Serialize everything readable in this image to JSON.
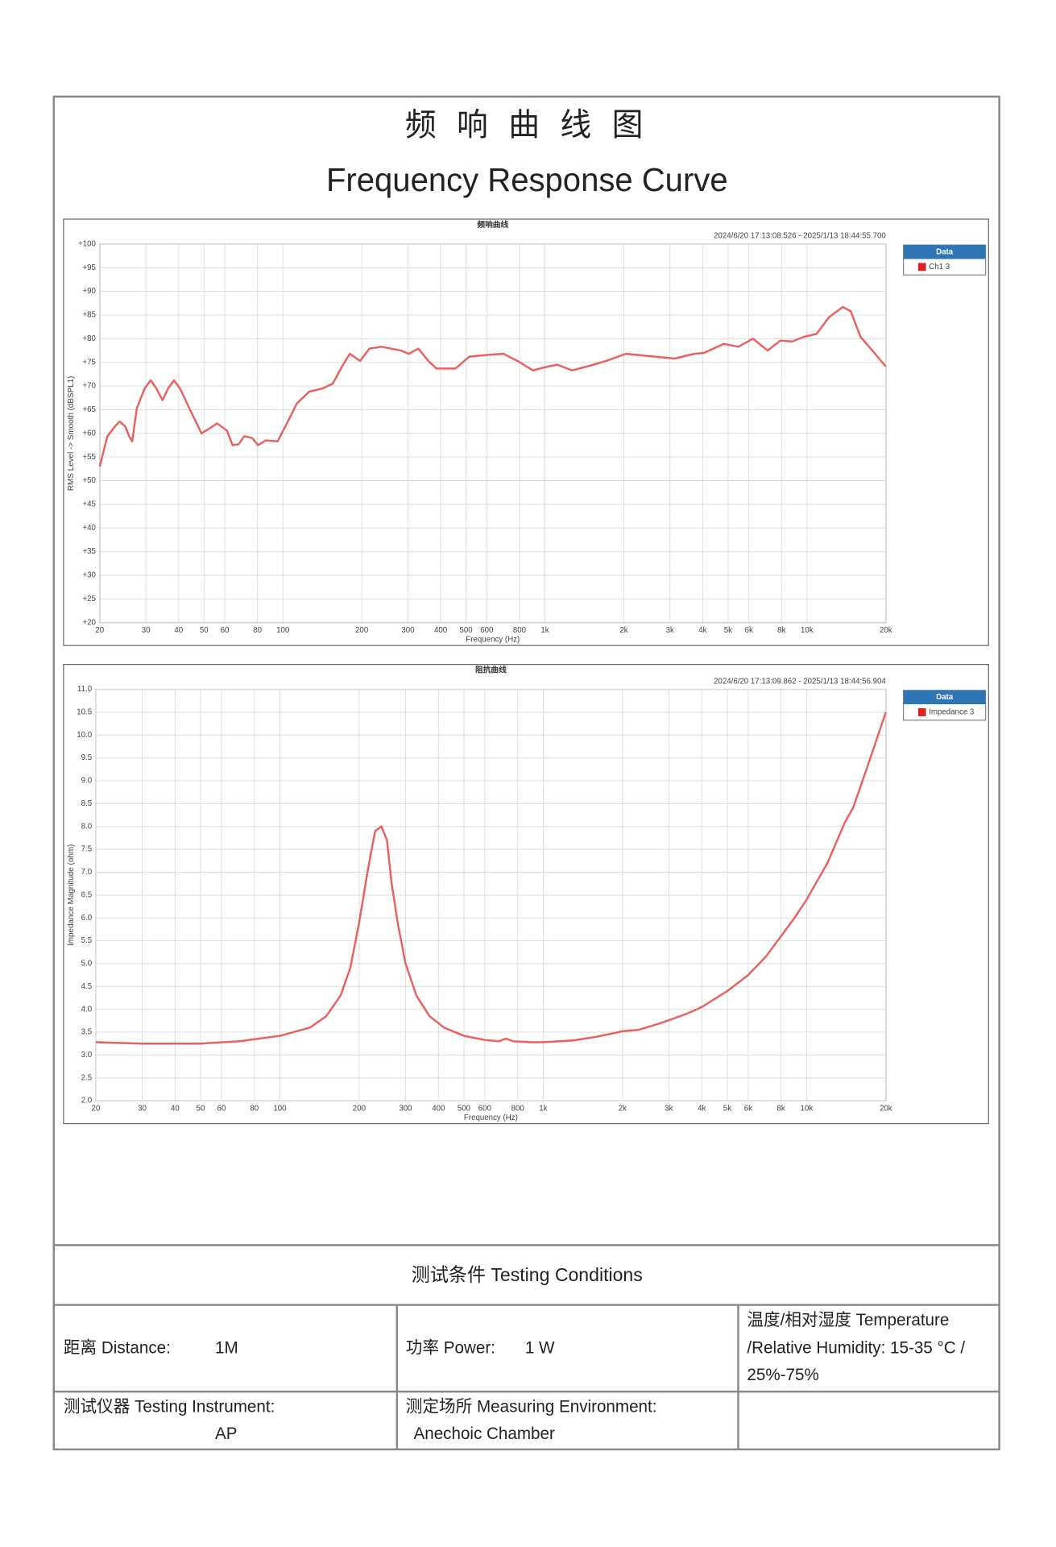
{
  "header": {
    "title_cn": "频 响 曲 线 图",
    "title_en": "Frequency Response Curve"
  },
  "chart_data": [
    {
      "type": "line",
      "title": "频响曲线",
      "subtitle": "2024/6/20 17:13:08.526 - 2025/1/13 18:44:55.700",
      "x_label": "Frequency (Hz)",
      "y_label": "RMS Level -> Smooth (dBSPL1)",
      "log_x": true,
      "grid": true,
      "legend": "outside-right",
      "legend_title": "Data",
      "xlim": [
        20,
        20000
      ],
      "xticks": [
        20,
        30,
        40,
        50,
        60,
        80,
        100,
        200,
        300,
        400,
        500,
        600,
        800,
        {
          "value": 1000,
          "label": "1k"
        },
        {
          "value": 2000,
          "label": "2k"
        },
        {
          "value": 3000,
          "label": "3k"
        },
        {
          "value": 4000,
          "label": "4k"
        },
        {
          "value": 5000,
          "label": "5k"
        },
        {
          "value": 6000,
          "label": "6k"
        },
        {
          "value": 8000,
          "label": "8k"
        },
        {
          "value": 10000,
          "label": "10k"
        },
        {
          "value": 20000,
          "label": "20k"
        }
      ],
      "ylim": [
        20,
        100
      ],
      "yticks": [
        {
          "value": 100,
          "label": "+100"
        },
        {
          "value": 95,
          "label": "+95"
        },
        {
          "value": 90,
          "label": "+90"
        },
        {
          "value": 85,
          "label": "+85"
        },
        {
          "value": 80,
          "label": "+80"
        },
        {
          "value": 75,
          "label": "+75"
        },
        {
          "value": 70,
          "label": "+70"
        },
        {
          "value": 65,
          "label": "+65"
        },
        {
          "value": 60,
          "label": "+60"
        },
        {
          "value": 55,
          "label": "+55"
        },
        {
          "value": 50,
          "label": "+50"
        },
        {
          "value": 45,
          "label": "+45"
        },
        {
          "value": 40,
          "label": "+40"
        },
        {
          "value": 35,
          "label": "+35"
        },
        {
          "value": 30,
          "label": "+30"
        },
        {
          "value": 25,
          "label": "+25"
        },
        {
          "value": 20,
          "label": "+20"
        }
      ],
      "x": [
        20,
        21.4,
        22.9,
        23.8,
        25,
        25.9,
        26.6,
        27.7,
        29.7,
        31.3,
        32.9,
        34.7,
        36.5,
        38.4,
        40.5,
        44.9,
        48.9,
        52.4,
        56.1,
        61.1,
        64.3,
        67.8,
        71.3,
        76.4,
        80.4,
        86.1,
        95.5,
        106,
        113,
        126,
        142,
        155,
        168,
        180,
        197,
        214,
        238,
        282,
        302,
        329,
        359,
        385,
        456,
        514,
        611,
        695,
        791,
        900,
        1023,
        1115,
        1268,
        1443,
        1714,
        2033,
        2415,
        3126,
        3714,
        4045,
        4810,
        5472,
        6224,
        7080,
        7912,
        8773,
        9730,
        10870,
        12160,
        13710,
        14690,
        16000,
        18200,
        20000
      ],
      "series": [
        {
          "name": "Ch1 3",
          "color": "#e8605f",
          "values": [
            53,
            59.4,
            61.5,
            62.5,
            61.5,
            59.4,
            58.3,
            65.3,
            69.5,
            71.2,
            69.5,
            67,
            69.5,
            71.2,
            69.5,
            64.2,
            60,
            61,
            62.1,
            60.6,
            57.5,
            57.7,
            59.4,
            59,
            57.5,
            58.5,
            58.3,
            63.2,
            66.3,
            68.8,
            69.5,
            70.5,
            74.1,
            76.8,
            75.3,
            77.9,
            78.3,
            77.5,
            76.8,
            77.9,
            75.3,
            73.7,
            73.7,
            76.2,
            76.6,
            76.8,
            75.2,
            73.3,
            74.1,
            74.5,
            73.3,
            74.1,
            75.3,
            76.8,
            76.4,
            75.8,
            76.8,
            77,
            78.9,
            78.3,
            80,
            77.5,
            79.6,
            79.4,
            80.4,
            81,
            84.6,
            86.7,
            85.8,
            80.4,
            76.8,
            74.1
          ]
        }
      ]
    },
    {
      "type": "line",
      "title": "阻抗曲线",
      "subtitle": "2024/6/20 17:13:09.862 - 2025/1/13 18:44:56.904",
      "x_label": "Frequency (Hz)",
      "y_label": "Impedance Magnitude (ohm)",
      "log_x": true,
      "grid": true,
      "legend": "outside-right",
      "legend_title": "Data",
      "xlim": [
        20,
        20000
      ],
      "xticks": [
        20,
        30,
        40,
        50,
        60,
        80,
        100,
        200,
        300,
        400,
        500,
        600,
        800,
        {
          "value": 1000,
          "label": "1k"
        },
        {
          "value": 2000,
          "label": "2k"
        },
        {
          "value": 3000,
          "label": "3k"
        },
        {
          "value": 4000,
          "label": "4k"
        },
        {
          "value": 5000,
          "label": "5k"
        },
        {
          "value": 6000,
          "label": "6k"
        },
        {
          "value": 8000,
          "label": "8k"
        },
        {
          "value": 10000,
          "label": "10k"
        },
        {
          "value": 20000,
          "label": "20k"
        }
      ],
      "ylim": [
        2,
        11
      ],
      "yticks": [
        {
          "value": 11,
          "label": "11.0"
        },
        10.5,
        {
          "value": 10,
          "label": "10.0"
        },
        9.5,
        {
          "value": 9,
          "label": "9.0"
        },
        8.5,
        {
          "value": 8,
          "label": "8.0"
        },
        7.5,
        {
          "value": 7,
          "label": "7.0"
        },
        6.5,
        {
          "value": 6,
          "label": "6.0"
        },
        5.5,
        {
          "value": 5,
          "label": "5.0"
        },
        4.5,
        {
          "value": 4,
          "label": "4.0"
        },
        3.5,
        {
          "value": 3,
          "label": "3.0"
        },
        2.5,
        {
          "value": 2,
          "label": "2.0"
        }
      ],
      "x": [
        20,
        30,
        50,
        70,
        100,
        130,
        150,
        170,
        185,
        200,
        215,
        230,
        243,
        255,
        265,
        280,
        300,
        330,
        370,
        420,
        500,
        600,
        680,
        720,
        770,
        900,
        1000,
        1300,
        1600,
        2000,
        2300,
        2800,
        3500,
        4000,
        5000,
        6000,
        7000,
        8000,
        9000,
        10000,
        12000,
        14000,
        15000,
        17000,
        20000
      ],
      "series": [
        {
          "name": "Impedance 3",
          "color": "#e8605f",
          "values": [
            3.28,
            3.25,
            3.25,
            3.3,
            3.42,
            3.6,
            3.85,
            4.3,
            4.9,
            5.9,
            7,
            7.9,
            8,
            7.7,
            6.8,
            5.9,
            5,
            4.3,
            3.85,
            3.6,
            3.42,
            3.33,
            3.3,
            3.36,
            3.3,
            3.28,
            3.28,
            3.32,
            3.4,
            3.52,
            3.55,
            3.7,
            3.9,
            4.05,
            4.4,
            4.75,
            5.15,
            5.6,
            6,
            6.4,
            7.2,
            8.1,
            8.4,
            9.3,
            10.5
          ]
        }
      ]
    }
  ],
  "table": {
    "heading": "测试条件   Testing   Conditions",
    "distance_label": "距离 Distance:",
    "distance_value": "1M",
    "power_label": "功率 Power:",
    "power_value": "1 W",
    "environment_lines": [
      "温度/相对湿度  Temperature",
      "/Relative  Humidity:  15-35  °C  /",
      "25%-75%"
    ],
    "instrument_label": "测试仪器 Testing Instrument:",
    "instrument_value": "AP",
    "location_label": "测定场所 Measuring Environment:",
    "location_value": "Anechoic Chamber"
  }
}
